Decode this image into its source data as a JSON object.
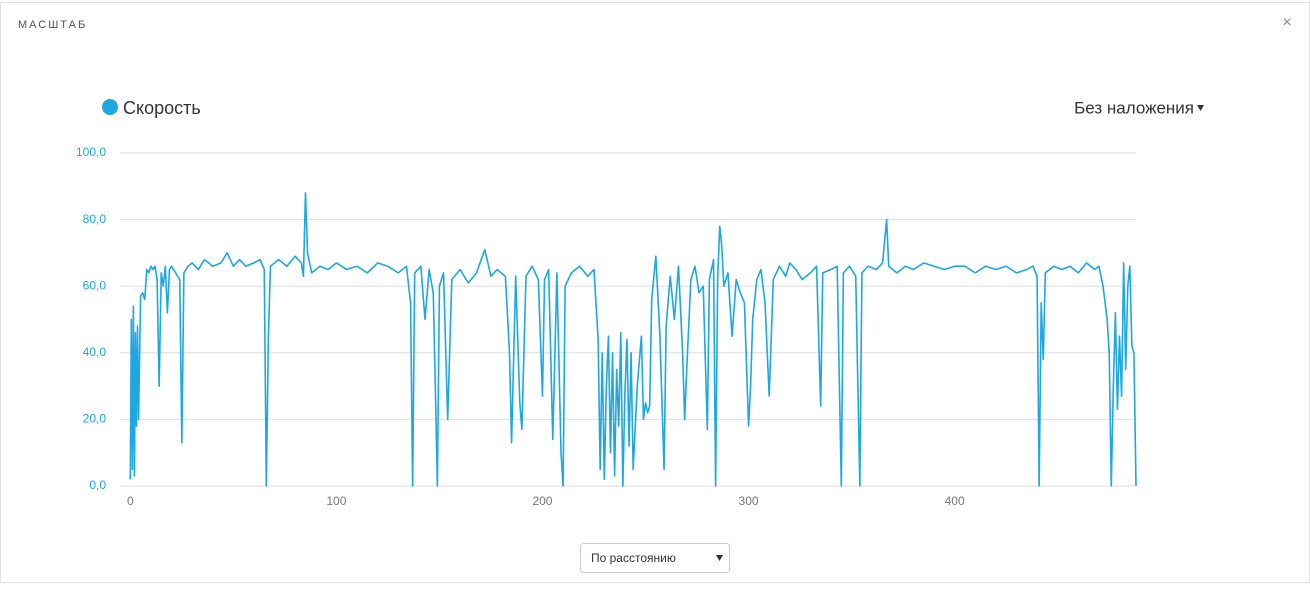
{
  "header": {
    "title": "МАСШТАБ",
    "close": "×"
  },
  "chart_data": {
    "type": "line",
    "series": [
      {
        "name": "Скорость",
        "color": "#1ea7e1",
        "values": [
          2,
          50,
          5,
          54,
          3,
          46,
          18,
          48,
          20,
          57,
          58,
          56,
          65,
          64,
          66,
          65,
          66,
          62,
          30,
          64,
          60,
          66,
          52,
          65,
          66,
          64,
          62,
          13,
          64,
          66,
          67,
          65,
          68,
          66,
          67,
          70,
          66,
          68,
          66,
          67,
          68,
          65,
          0,
          45,
          66,
          68,
          66,
          69,
          67,
          63,
          88,
          70,
          64,
          66,
          65,
          67,
          65,
          66,
          64,
          67,
          66,
          64,
          66,
          55,
          0,
          64,
          66,
          50,
          65,
          58,
          30,
          0,
          60,
          64,
          20,
          62,
          65,
          61,
          64,
          71,
          63,
          65,
          63,
          40,
          13,
          63,
          25,
          17,
          63,
          66,
          62,
          27,
          62,
          65,
          14,
          64,
          10,
          0,
          60,
          64,
          66,
          63,
          65,
          44,
          5,
          40,
          2,
          30,
          45,
          10,
          40,
          3,
          35,
          18,
          46,
          0,
          28,
          44,
          12,
          40,
          5,
          30,
          45,
          20,
          25,
          22,
          24,
          56,
          69,
          45,
          5,
          48,
          63,
          50,
          66,
          40,
          20,
          35,
          62,
          66,
          58,
          60,
          17,
          62,
          68,
          0,
          62,
          78,
          72,
          60,
          64,
          45,
          62,
          58,
          55,
          18,
          30,
          50,
          62,
          65,
          55,
          27,
          62,
          66,
          63,
          67,
          65,
          62,
          64,
          66,
          24,
          64,
          65,
          66,
          0,
          64,
          66,
          63,
          0,
          64,
          66,
          65,
          67,
          80,
          66,
          64,
          66,
          65,
          67,
          66,
          65,
          66,
          66,
          64,
          66,
          65,
          66,
          64,
          65,
          66,
          63,
          0,
          55,
          38,
          64,
          66,
          65,
          66,
          64,
          67,
          65,
          66,
          60,
          50,
          40,
          0,
          30,
          52,
          23,
          45,
          27,
          67,
          35,
          60,
          66,
          42,
          40,
          0
        ]
      }
    ],
    "x": [
      0,
      0.5,
      1,
      1.5,
      2,
      2.5,
      3,
      3.5,
      4,
      5,
      6,
      7,
      8,
      9,
      10,
      11,
      12,
      13,
      14,
      15,
      16,
      17,
      18,
      19,
      20,
      22,
      24,
      25,
      26,
      28,
      30,
      33,
      36,
      40,
      44,
      47,
      50,
      53,
      56,
      60,
      63,
      65,
      66,
      67,
      68,
      72,
      76,
      80,
      83,
      84,
      85,
      86,
      88,
      92,
      96,
      100,
      105,
      110,
      115,
      120,
      125,
      130,
      134,
      136,
      137,
      138,
      141,
      143,
      145,
      147,
      148,
      149,
      150,
      152,
      154,
      156,
      160,
      164,
      168,
      172,
      175,
      178,
      182,
      184,
      185,
      187,
      189,
      190,
      192,
      195,
      198,
      200,
      201,
      203,
      205,
      207,
      209,
      210,
      211,
      214,
      218,
      222,
      225,
      227,
      228,
      229,
      230,
      231,
      232,
      233,
      234,
      235,
      236,
      237,
      238,
      239,
      240,
      241,
      242,
      243,
      244,
      246,
      248,
      249,
      250,
      251,
      252,
      253,
      255,
      257,
      259,
      260,
      262,
      264,
      266,
      268,
      269,
      270,
      272,
      274,
      276,
      278,
      280,
      281,
      283,
      284,
      285,
      286,
      287,
      288,
      290,
      292,
      294,
      296,
      298,
      300,
      301,
      302,
      304,
      306,
      308,
      310,
      312,
      315,
      318,
      320,
      323,
      326,
      330,
      333,
      335,
      336,
      340,
      343,
      345,
      346,
      349,
      352,
      354,
      355,
      358,
      362,
      365,
      367,
      368,
      372,
      376,
      380,
      385,
      390,
      395,
      400,
      405,
      410,
      415,
      420,
      425,
      430,
      435,
      438,
      440,
      441,
      442,
      443,
      444,
      448,
      452,
      456,
      460,
      464,
      468,
      470,
      472,
      474,
      475,
      476,
      477,
      478,
      479,
      480,
      481,
      482,
      483,
      484,
      485,
      486,
      487,
      488
    ],
    "xlim": [
      -5,
      488
    ],
    "ylim": [
      0,
      100
    ],
    "xticks": [
      0,
      100,
      200,
      300,
      400
    ],
    "yticks": [
      {
        "value": 0,
        "label": "0,0"
      },
      {
        "value": 20,
        "label": "20,0"
      },
      {
        "value": 40,
        "label": "40,0"
      },
      {
        "value": 60,
        "label": "60,0"
      },
      {
        "value": 80,
        "label": "80,0"
      },
      {
        "value": 100,
        "label": "100,0"
      }
    ],
    "grid": true
  },
  "overlay_menu": "Без наложения",
  "select": "По расстоянию"
}
